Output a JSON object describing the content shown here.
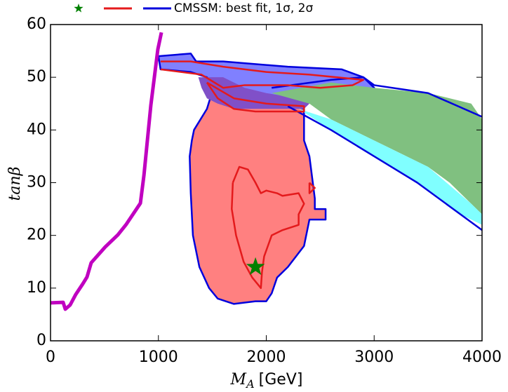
{
  "chart_data": {
    "type": "contour",
    "xlabel": {
      "symbol": "M",
      "subscript": "A",
      "unit": "[GeV]"
    },
    "ylabel": "tanβ",
    "xlim": [
      0,
      4000
    ],
    "ylim": [
      0,
      60
    ],
    "xticks": [
      0,
      1000,
      2000,
      3000,
      4000
    ],
    "yticks": [
      0,
      10,
      20,
      30,
      40,
      50,
      60
    ],
    "legend": [
      {
        "marker": "star",
        "color": "#008000"
      },
      {
        "marker": "line",
        "color": "#e41a1c"
      },
      {
        "marker": "line",
        "color": "#0000dd",
        "name": "CMSSM: best fit, 1σ, 2σ"
      }
    ],
    "regions": [
      {
        "fill": "#ff8080",
        "stroke": "#0000dd",
        "x": [
          1480,
          1700,
          2200,
          2350,
          2350,
          2400,
          2450,
          2450,
          2550,
          2550,
          2400,
          2350,
          2200,
          2100,
          2050,
          2000,
          1900,
          1700,
          1550,
          1470,
          1380,
          1320,
          1300,
          1290,
          1310,
          1330,
          1450
        ],
        "y": [
          46,
          45,
          45,
          44,
          38,
          35,
          27,
          25,
          25,
          23,
          23,
          18,
          14,
          12,
          9,
          7.5,
          7.5,
          7,
          8,
          10,
          14,
          20,
          28,
          35,
          38,
          40,
          44
        ]
      },
      {
        "fill": "#8080ff",
        "stroke": "#0000dd",
        "x": [
          1000,
          1300,
          1350,
          1600,
          2200,
          2700,
          2900,
          3000,
          2900,
          2700,
          2500,
          2300,
          2000,
          1600,
          1500,
          1450,
          1300,
          1020
        ],
        "y": [
          54,
          54.5,
          53,
          53,
          52,
          51.5,
          50,
          48,
          47,
          48,
          47.5,
          46,
          46,
          46.5,
          48,
          50,
          51,
          51.5
        ]
      },
      {
        "fill": "#8050c8",
        "stroke": "none",
        "x": [
          1370,
          1600,
          1800,
          2000,
          2300,
          2400,
          2350,
          2000,
          1700,
          1550,
          1450,
          1400
        ],
        "y": [
          50,
          50,
          48,
          47,
          46,
          45,
          44,
          44,
          44,
          45,
          46,
          48
        ]
      },
      {
        "fill": "#80c080",
        "stroke": "none",
        "x": [
          2050,
          2600,
          3000,
          3500,
          3900,
          4000,
          4000,
          3900,
          3700,
          3500,
          3200,
          2900,
          2600,
          2400
        ],
        "y": [
          47,
          49,
          48,
          47,
          45,
          42,
          24,
          26,
          30,
          33,
          36,
          39,
          42,
          45
        ]
      },
      {
        "fill": "#80ffff",
        "stroke": "none",
        "x": [
          2300,
          2600,
          3000,
          3500,
          3900,
          4000,
          4000,
          3800,
          3400,
          3000,
          2600
        ],
        "y": [
          44,
          42,
          38,
          33,
          26,
          24,
          22,
          24,
          30,
          35,
          40
        ]
      }
    ],
    "lines": [
      {
        "color": "#c000c0",
        "width": 5,
        "x": [
          0,
          117,
          137,
          182,
          234,
          299,
          338,
          377,
          507,
          624,
          702,
          833,
          866,
          930,
          995,
          1028
        ],
        "y": [
          7.2,
          7.3,
          6,
          6.8,
          8.8,
          10.8,
          12.1,
          14.8,
          17.8,
          20.1,
          22.1,
          26.1,
          31.4,
          44.7,
          55.3,
          58.5
        ]
      },
      {
        "color": "#0000dd",
        "width": 2.5,
        "x": [
          2050,
          2600,
          2900,
          3000,
          3500,
          4000
        ],
        "y": [
          48,
          49.5,
          50,
          48.5,
          47,
          42.5
        ]
      },
      {
        "color": "#0000dd",
        "width": 2.5,
        "x": [
          2200,
          2600,
          3000,
          3400,
          3800,
          4000
        ],
        "y": [
          44.5,
          40,
          35,
          30,
          24,
          21
        ]
      },
      {
        "color": "#e41a1c",
        "width": 2.5,
        "x": [
          1020,
          1300,
          1600,
          2000,
          2400,
          2900,
          2800,
          2500,
          2200,
          1800,
          1600,
          1400,
          1020
        ],
        "y": [
          53,
          53,
          52,
          51,
          50.5,
          49.5,
          48.5,
          48,
          48.5,
          48.5,
          48,
          50.5,
          51.5
        ]
      },
      {
        "color": "#e41a1c",
        "width": 2.5,
        "x": [
          1450,
          1700,
          2000,
          2350,
          2350,
          1900,
          1700,
          1550,
          1450
        ],
        "y": [
          49,
          46,
          45,
          44.5,
          43.5,
          43.5,
          44,
          46,
          49
        ]
      },
      {
        "color": "#e41a1c",
        "width": 2.5,
        "x": [
          1690,
          1750,
          1830,
          1900,
          1950,
          2000,
          2100,
          2150,
          2300,
          2350,
          2300,
          2300,
          2150,
          2050,
          1980,
          1960,
          1950,
          1870,
          1790,
          1720,
          1680,
          1690
        ],
        "y": [
          30,
          33,
          32.5,
          30,
          28,
          28.5,
          28,
          27.5,
          28,
          26,
          24,
          22,
          21,
          20,
          16,
          13,
          10,
          12,
          15,
          20,
          25,
          30
        ]
      },
      {
        "color": "#e41a1c",
        "width": 2.5,
        "x": [
          2400,
          2450,
          2400,
          2400
        ],
        "y": [
          30,
          29,
          28,
          30
        ]
      }
    ],
    "points": [
      {
        "marker": "star",
        "color": "#008000",
        "x": 1900,
        "y": 14
      }
    ]
  }
}
